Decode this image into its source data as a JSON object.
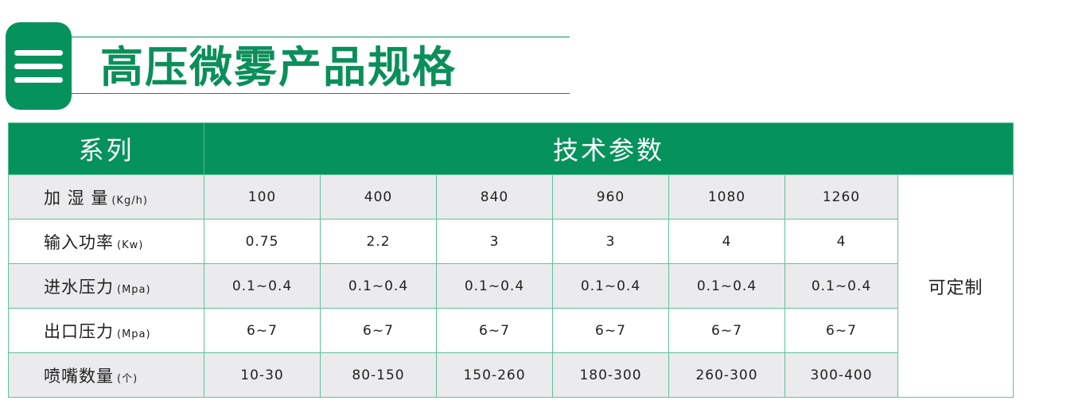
{
  "title": "高压微雾产品规格",
  "table": {
    "header": {
      "series": "系列",
      "params": "技术参数"
    },
    "rows": [
      {
        "label": "加 湿 量",
        "unit": "(Kg/h)",
        "values": [
          "100",
          "400",
          "840",
          "960",
          "1080",
          "1260"
        ]
      },
      {
        "label": "输入功率",
        "unit": "(Kw)",
        "values": [
          "0.75",
          "2.2",
          "3",
          "3",
          "4",
          "4"
        ]
      },
      {
        "label": "进水压力",
        "unit": "(Mpa)",
        "values": [
          "0.1~0.4",
          "0.1~0.4",
          "0.1~0.4",
          "0.1~0.4",
          "0.1~0.4",
          "0.1~0.4"
        ]
      },
      {
        "label": "出口压力",
        "unit": "(Mpa)",
        "values": [
          "6~7",
          "6~7",
          "6~7",
          "6~7",
          "6~7",
          "6~7"
        ]
      },
      {
        "label": "喷嘴数量",
        "unit": "(个)",
        "values": [
          "10-30",
          "80-150",
          "150-260",
          "180-300",
          "260-300",
          "300-400"
        ]
      }
    ],
    "custom": "可定制"
  },
  "colors": {
    "brand": "#06925c",
    "row_alt": "#ebebed",
    "border": "#5cc39a"
  }
}
